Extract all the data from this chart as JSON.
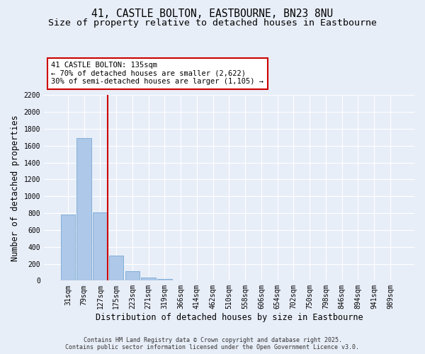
{
  "title": "41, CASTLE BOLTON, EASTBOURNE, BN23 8NU",
  "subtitle": "Size of property relative to detached houses in Eastbourne",
  "xlabel": "Distribution of detached houses by size in Eastbourne",
  "ylabel": "Number of detached properties",
  "bar_labels": [
    "31sqm",
    "79sqm",
    "127sqm",
    "175sqm",
    "223sqm",
    "271sqm",
    "319sqm",
    "366sqm",
    "414sqm",
    "462sqm",
    "510sqm",
    "558sqm",
    "606sqm",
    "654sqm",
    "702sqm",
    "750sqm",
    "798sqm",
    "846sqm",
    "894sqm",
    "941sqm",
    "989sqm"
  ],
  "bar_values": [
    780,
    1690,
    810,
    300,
    110,
    40,
    20,
    0,
    0,
    0,
    0,
    0,
    0,
    0,
    0,
    0,
    0,
    0,
    0,
    0,
    0
  ],
  "bar_color": "#adc8e8",
  "bar_edge_color": "#7aaad4",
  "ylim": [
    0,
    2200
  ],
  "yticks": [
    0,
    200,
    400,
    600,
    800,
    1000,
    1200,
    1400,
    1600,
    1800,
    2000,
    2200
  ],
  "vline_color": "#cc0000",
  "annotation_text_line1": "41 CASTLE BOLTON: 135sqm",
  "annotation_text_line2": "← 70% of detached houses are smaller (2,622)",
  "annotation_text_line3": "30% of semi-detached houses are larger (1,105) →",
  "annotation_box_color": "#cc0000",
  "background_color": "#e8eef8",
  "plot_bg_color": "#e8eef8",
  "footer_line1": "Contains HM Land Registry data © Crown copyright and database right 2025.",
  "footer_line2": "Contains public sector information licensed under the Open Government Licence v3.0.",
  "title_fontsize": 10.5,
  "subtitle_fontsize": 9.5,
  "annotation_fontsize": 7.5,
  "tick_fontsize": 7,
  "ylabel_fontsize": 8.5,
  "xlabel_fontsize": 8.5,
  "footer_fontsize": 6.0
}
